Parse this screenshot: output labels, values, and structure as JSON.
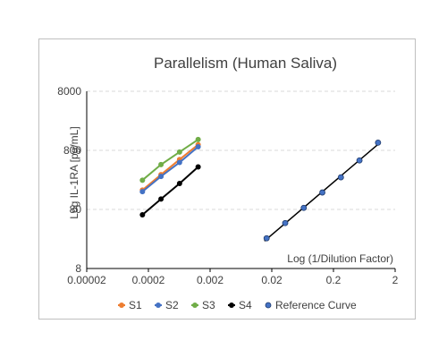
{
  "chart_data": {
    "type": "scatter",
    "title": "Parallelism (Human Saliva)",
    "xlabel": "Log (1/Dilution Factor)",
    "ylabel": "Log IL-1RA [pg/mL]",
    "xscale": "log",
    "yscale": "log",
    "xlim": [
      2e-05,
      2
    ],
    "ylim": [
      8,
      8000
    ],
    "x_ticks": [
      "0.00002",
      "0.0002",
      "0.002",
      "0.02",
      "0.2",
      "2"
    ],
    "y_ticks": [
      "8",
      "80",
      "800",
      "8000"
    ],
    "y_grid": true,
    "legend_position": "bottom",
    "series": [
      {
        "name": "S1",
        "color": "#ED7D31",
        "x": [
          0.00016,
          0.00032,
          0.00064,
          0.00128
        ],
        "y": [
          170,
          310,
          560,
          1000
        ]
      },
      {
        "name": "S2",
        "color": "#4472C4",
        "x": [
          0.00016,
          0.00032,
          0.00064,
          0.00128
        ],
        "y": [
          160,
          290,
          500,
          920
        ]
      },
      {
        "name": "S3",
        "color": "#70AD47",
        "x": [
          0.00016,
          0.00032,
          0.00064,
          0.00128
        ],
        "y": [
          250,
          460,
          750,
          1220
        ]
      },
      {
        "name": "S4",
        "color": "#000000",
        "x": [
          0.00016,
          0.00032,
          0.00064,
          0.00128
        ],
        "y": [
          65,
          120,
          220,
          420
        ]
      },
      {
        "name": "Reference Curve",
        "color": "#4472C4",
        "x": [
          0.0165,
          0.033,
          0.066,
          0.132,
          0.264,
          0.528,
          1.056
        ],
        "y": [
          26,
          47,
          85,
          155,
          280,
          540,
          1080
        ],
        "trendline_color": "#000000"
      }
    ]
  }
}
